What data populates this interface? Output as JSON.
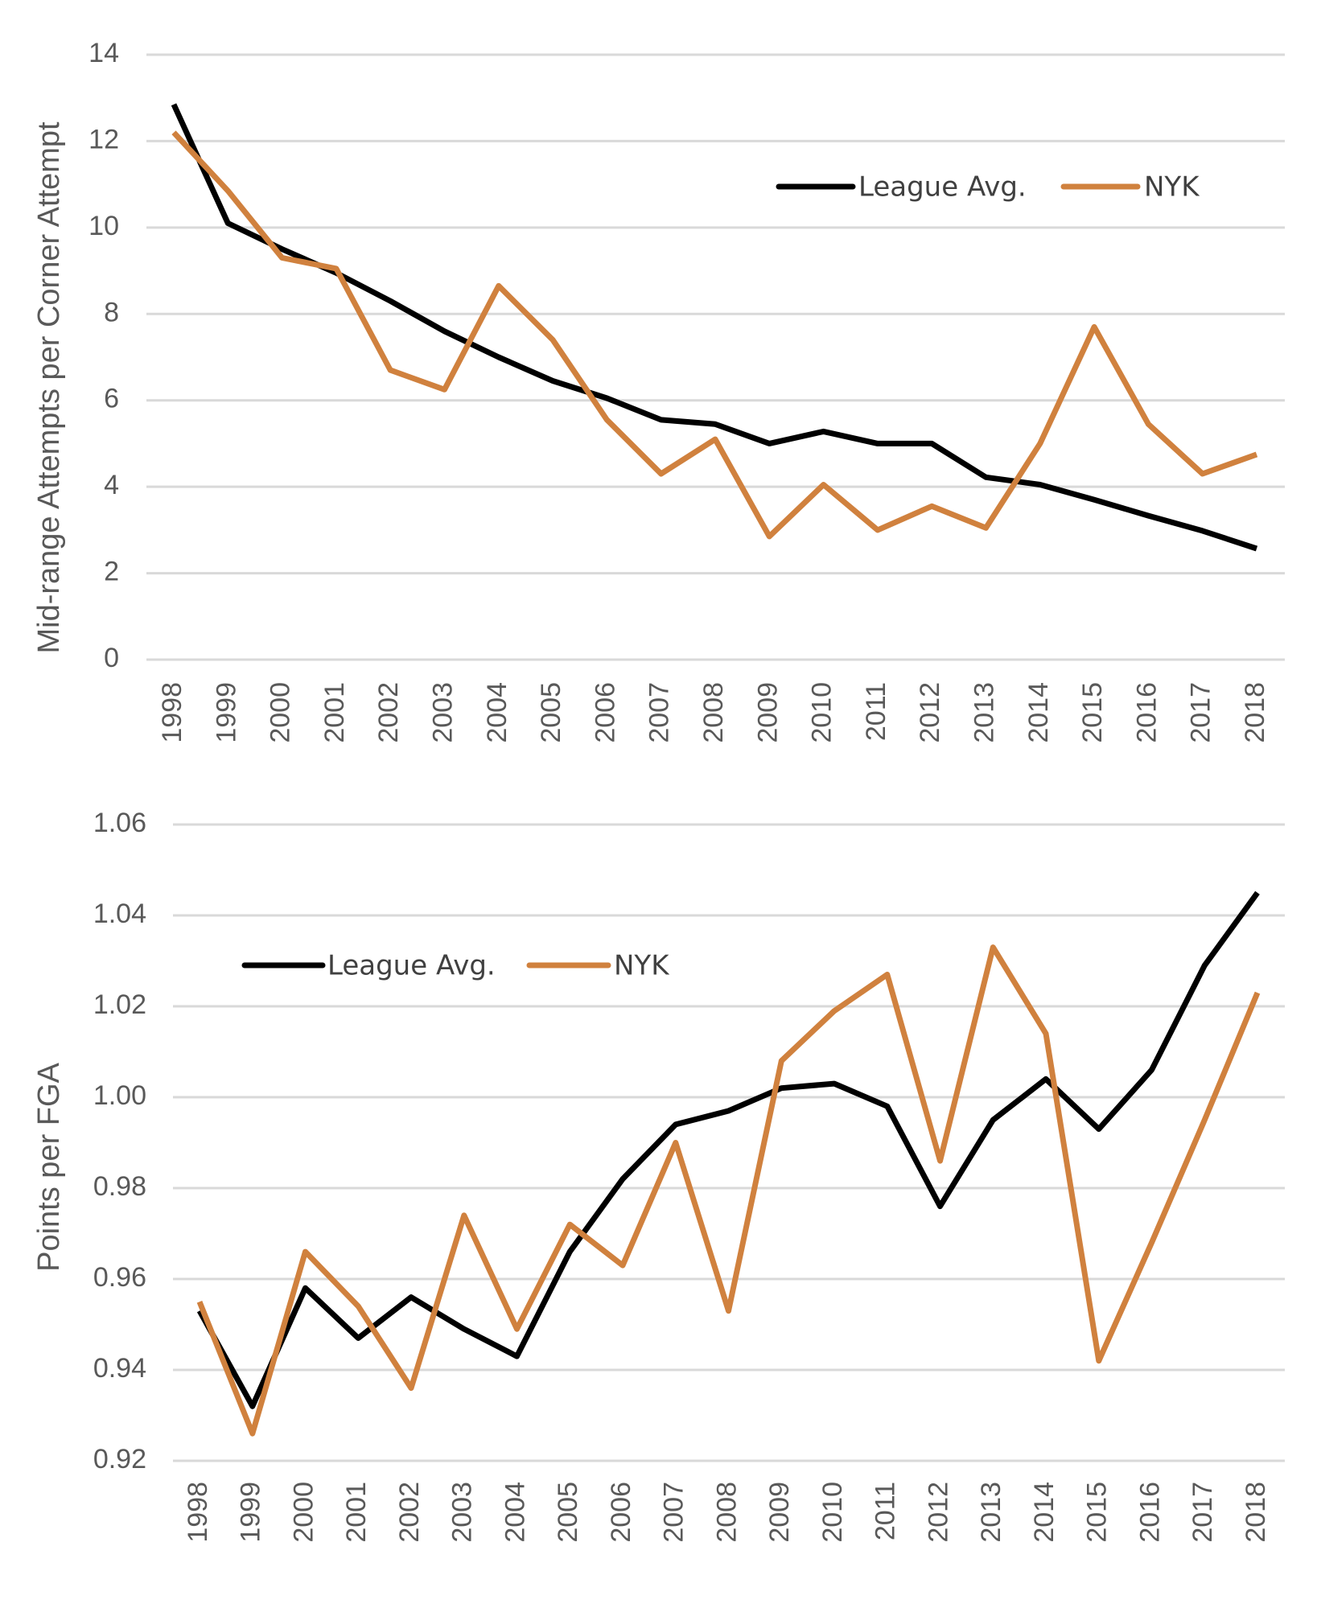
{
  "chart_data": [
    {
      "type": "line",
      "title": "",
      "xlabel": "",
      "ylabel": "Mid-range Attempts per Corner Attempt",
      "categories": [
        "1998",
        "1999",
        "2000",
        "2001",
        "2002",
        "2003",
        "2004",
        "2005",
        "2006",
        "2007",
        "2008",
        "2009",
        "2010",
        "2011",
        "2012",
        "2013",
        "2014",
        "2015",
        "2016",
        "2017",
        "2018"
      ],
      "yticks": [
        "0",
        "2",
        "4",
        "6",
        "8",
        "10",
        "12",
        "14"
      ],
      "ylim": [
        0,
        14
      ],
      "grid": true,
      "legend_position": "top-right",
      "series": [
        {
          "name": "League Avg.",
          "color": "#000000",
          "values": [
            12.85,
            10.1,
            9.5,
            8.95,
            8.3,
            7.6,
            7.0,
            6.45,
            6.05,
            5.55,
            5.45,
            5.0,
            5.28,
            5.0,
            5.0,
            4.22,
            4.05,
            3.7,
            3.33,
            2.98,
            2.57
          ]
        },
        {
          "name": "NYK",
          "color": "#D0813E",
          "values": [
            12.2,
            10.85,
            9.3,
            9.05,
            6.7,
            6.25,
            8.65,
            7.4,
            5.55,
            4.3,
            5.1,
            2.85,
            4.05,
            3.0,
            3.55,
            3.05,
            5.0,
            7.7,
            5.45,
            4.3,
            4.75
          ]
        }
      ]
    },
    {
      "type": "line",
      "title": "",
      "xlabel": "",
      "ylabel": "Points per FGA",
      "categories": [
        "1998",
        "1999",
        "2000",
        "2001",
        "2002",
        "2003",
        "2004",
        "2005",
        "2006",
        "2007",
        "2008",
        "2009",
        "2010",
        "2011",
        "2012",
        "2013",
        "2014",
        "2015",
        "2016",
        "2017",
        "2018"
      ],
      "yticks": [
        "0.92",
        "0.94",
        "0.96",
        "0.98",
        "1.00",
        "1.02",
        "1.04",
        "1.06"
      ],
      "ylim": [
        0.92,
        1.06
      ],
      "grid": true,
      "legend_position": "top-left",
      "series": [
        {
          "name": "League Avg.",
          "color": "#000000",
          "values": [
            0.953,
            0.932,
            0.958,
            0.947,
            0.956,
            0.949,
            0.943,
            0.966,
            0.982,
            0.994,
            0.997,
            1.002,
            1.003,
            0.998,
            0.976,
            0.995,
            1.004,
            0.993,
            1.006,
            1.029,
            1.045
          ]
        },
        {
          "name": "NYK",
          "color": "#D0813E",
          "values": [
            0.955,
            0.926,
            0.966,
            0.954,
            0.936,
            0.974,
            0.949,
            0.972,
            0.963,
            0.99,
            0.953,
            1.008,
            1.019,
            1.027,
            0.986,
            1.033,
            1.014,
            0.942,
            0.968,
            0.995,
            1.023
          ]
        }
      ]
    }
  ]
}
